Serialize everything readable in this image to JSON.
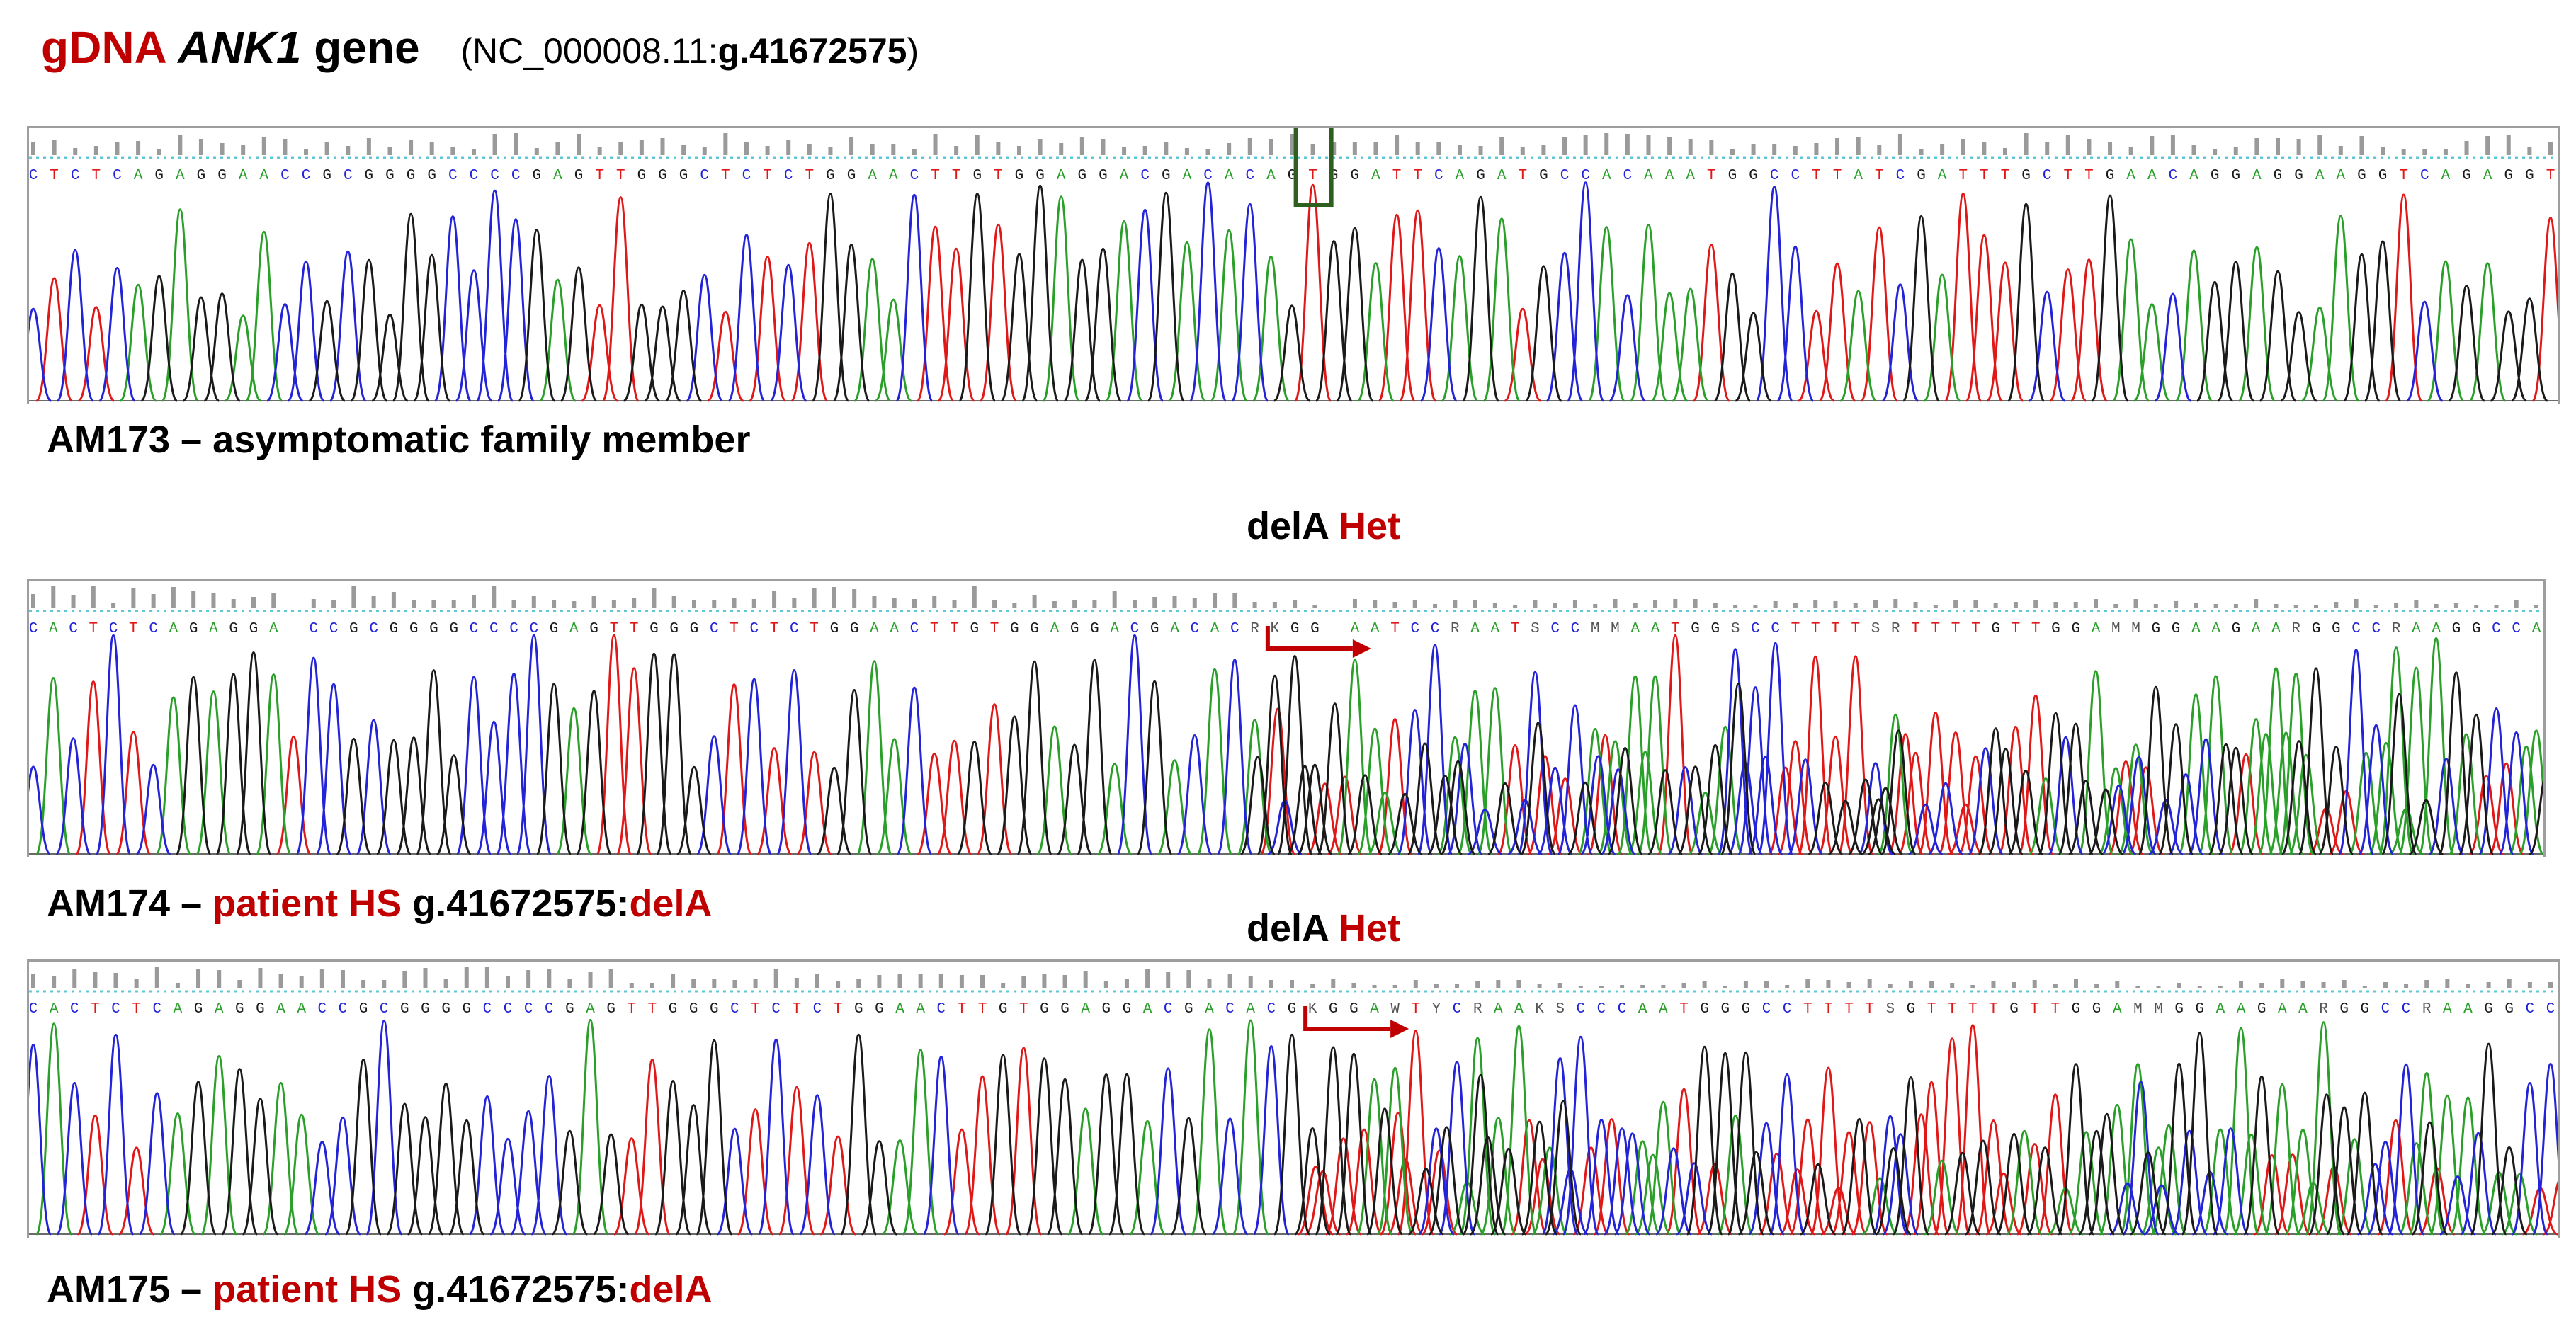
{
  "header": {
    "label_gdna": "gDNA",
    "gene": "ANK1",
    "gene_word": "gene",
    "accession_open": "(NC_000008.11:",
    "accession_pos": "g.41672575",
    "accession_close": ")"
  },
  "panels": [
    {
      "id": "AM173",
      "sequence": "CTCTCAGAGGAACCGCGGGGCCCCGAGTTGGGCTCTCTGGAACTTGTGGAGGACGACACAGTGGATTCAGATGCCACAAATGGCCTTATCGATTTGCTTGAACAGGAGGAAGGTCAGAGGT",
      "caption_id": "AM173",
      "caption_dash": "–",
      "caption_rest": "asymptomatic family member",
      "highlight_box": true
    },
    {
      "id": "AM174",
      "sequence": "CACTCTCAGAGGA CCGCGGGGCCCCGAGTTGGGCTCTCTGGAACTTGTGGAGGACGACACRKGG AATCCRAATSCCMMAATGGSCCTTTTSRTTTTGTTGGAMMGGAAGAARGGCCRAAGGCCA",
      "het_label_1": "delA",
      "het_label_2": "Het",
      "caption_id": "AM174",
      "caption_dash": "–",
      "caption_red": "patient HS",
      "caption_pos": "g.41672575:",
      "caption_del": "delA"
    },
    {
      "id": "AM175",
      "sequence": "CACTCTCAGAGGAACCGCGGGGCCCCGAGTTGGGCTCTCTGGAACTTGTGGAGGACGACACGKGGAWTYCRAAKSCCCAATGGGCCTTTTSGTTTTGTTGGAMMGGAAGAARGGCCRAAGGCC",
      "het_label_1": "delA",
      "het_label_2": "Het",
      "caption_id": "AM175",
      "caption_dash": "–",
      "caption_red": "patient HS",
      "caption_pos": "g.41672575:",
      "caption_del": "delA"
    }
  ],
  "colors": {
    "A": "#2aa02a",
    "C": "#2323d8",
    "G": "#1a1a1a",
    "T": "#e01818",
    "accent_red": "#c00000",
    "box_green": "#2f5f1f",
    "quality_bar": "#9a9a9a",
    "baseline_dots": "#5ec8d8"
  }
}
